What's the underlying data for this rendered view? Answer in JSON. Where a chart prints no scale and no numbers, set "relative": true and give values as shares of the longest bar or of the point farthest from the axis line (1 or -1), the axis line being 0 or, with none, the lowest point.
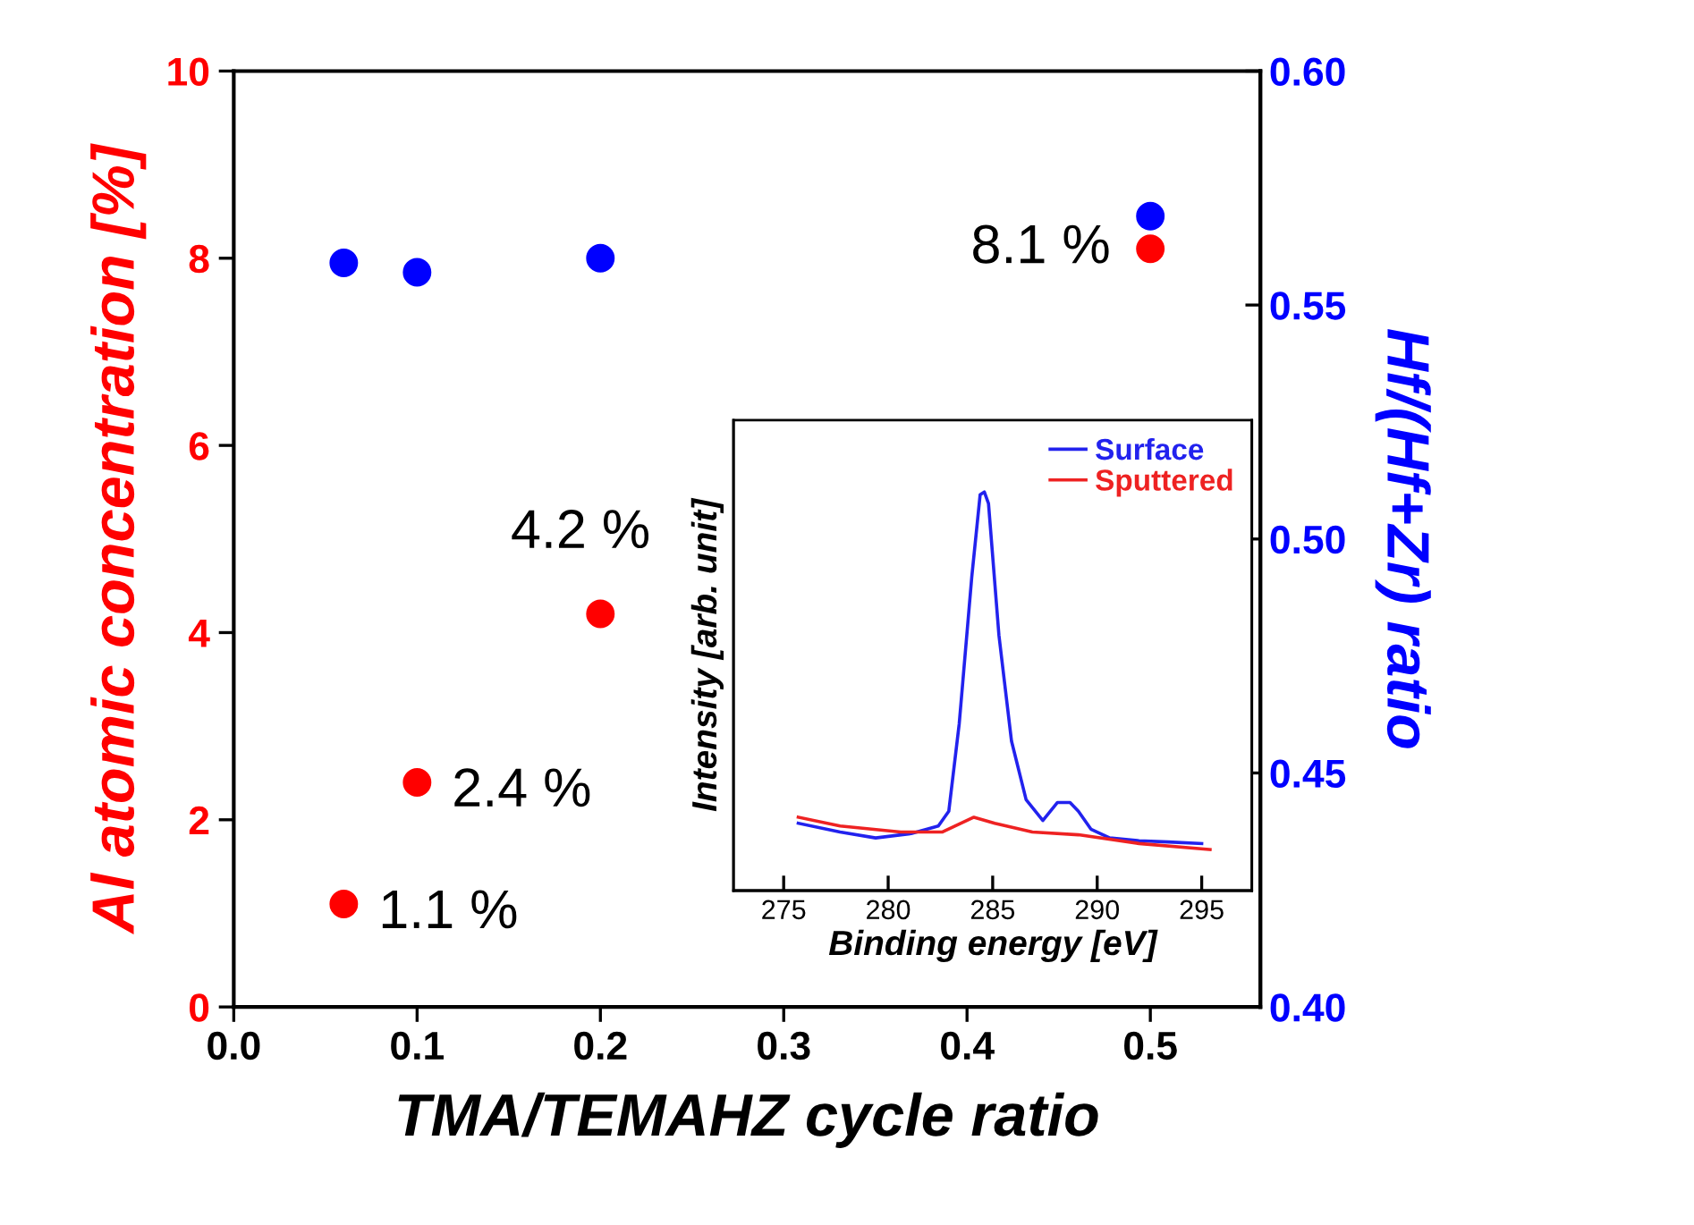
{
  "chart_data": [
    {
      "type": "scatter",
      "xlabel": "TMA/TEMAHZ cycle ratio",
      "ylabel": "Al atomic concentration [%]",
      "y2label": "Hf/(Hf+Zr) ratio",
      "marker": "circle",
      "grid": false,
      "legend": false,
      "xlim": [
        0,
        0.56
      ],
      "xticks": [
        {
          "value": 0,
          "label": "0.0"
        },
        {
          "value": 0.1,
          "label": "0.1"
        },
        {
          "value": 0.2,
          "label": "0.2"
        },
        {
          "value": 0.3,
          "label": "0.3"
        },
        {
          "value": 0.4,
          "label": "0.4"
        },
        {
          "value": 0.5,
          "label": "0.5"
        }
      ],
      "ylim": [
        0,
        10
      ],
      "yticks": [
        0,
        2,
        4,
        6,
        8,
        10
      ],
      "y2lim": [
        0.4,
        0.6
      ],
      "y2ticks": [
        {
          "value": 0.4,
          "label": "0.40"
        },
        {
          "value": 0.45,
          "label": "0.45"
        },
        {
          "value": 0.5,
          "label": "0.50"
        },
        {
          "value": 0.55,
          "label": "0.55"
        },
        {
          "value": 0.6,
          "label": "0.60"
        }
      ],
      "x": [
        0.06,
        0.1,
        0.2,
        0.5
      ],
      "series": [
        {
          "color": "#ff0000",
          "values": [
            1.1,
            2.4,
            4.2,
            8.1
          ]
        },
        {
          "color": "#0000ff",
          "axis": "y2",
          "values": [
            0.559,
            0.557,
            0.56,
            0.569
          ]
        }
      ],
      "annotations": [
        {
          "text": "1.1 %",
          "x": 0.06,
          "y": 1.1
        },
        {
          "text": "2.4 %",
          "x": 0.1,
          "y": 2.4
        },
        {
          "text": "4.2 %",
          "x": 0.2,
          "y": 4.2
        },
        {
          "text": "8.1 %",
          "x": 0.5,
          "y": 8.1
        }
      ]
    },
    {
      "type": "line",
      "xlabel": "Binding energy [eV]",
      "ylabel": "Intensity [arb. unit]",
      "relative": true,
      "legend": "top right",
      "grid": false,
      "xlim": [
        272.6,
        297.4
      ],
      "xticks": [
        275,
        280,
        285,
        290,
        295
      ],
      "series": [
        {
          "name": "Surface",
          "color": "#2222ee",
          "x": [
            275.7,
            277.7,
            279.4,
            281.1,
            282.4,
            282.9,
            283.4,
            284.0,
            284.4,
            284.6,
            284.8,
            285.3,
            285.9,
            286.6,
            287.4,
            288.1,
            288.7,
            289.1,
            289.7,
            290.6,
            292.0,
            293.4,
            295.0
          ],
          "values": [
            0.169,
            0.147,
            0.132,
            0.143,
            0.162,
            0.199,
            0.419,
            0.787,
            0.993,
            1,
            0.971,
            0.64,
            0.375,
            0.228,
            0.176,
            0.221,
            0.221,
            0.199,
            0.154,
            0.132,
            0.125,
            0.122,
            0.118
          ]
        },
        {
          "name": "Sputtered",
          "color": "#ee2222",
          "x": [
            275.7,
            277.7,
            280.6,
            282.6,
            284.1,
            285.1,
            286.9,
            289.1,
            292.0,
            295.4
          ],
          "values": [
            0.184,
            0.162,
            0.147,
            0.147,
            0.184,
            0.169,
            0.147,
            0.14,
            0.118,
            0.103
          ]
        }
      ]
    }
  ]
}
